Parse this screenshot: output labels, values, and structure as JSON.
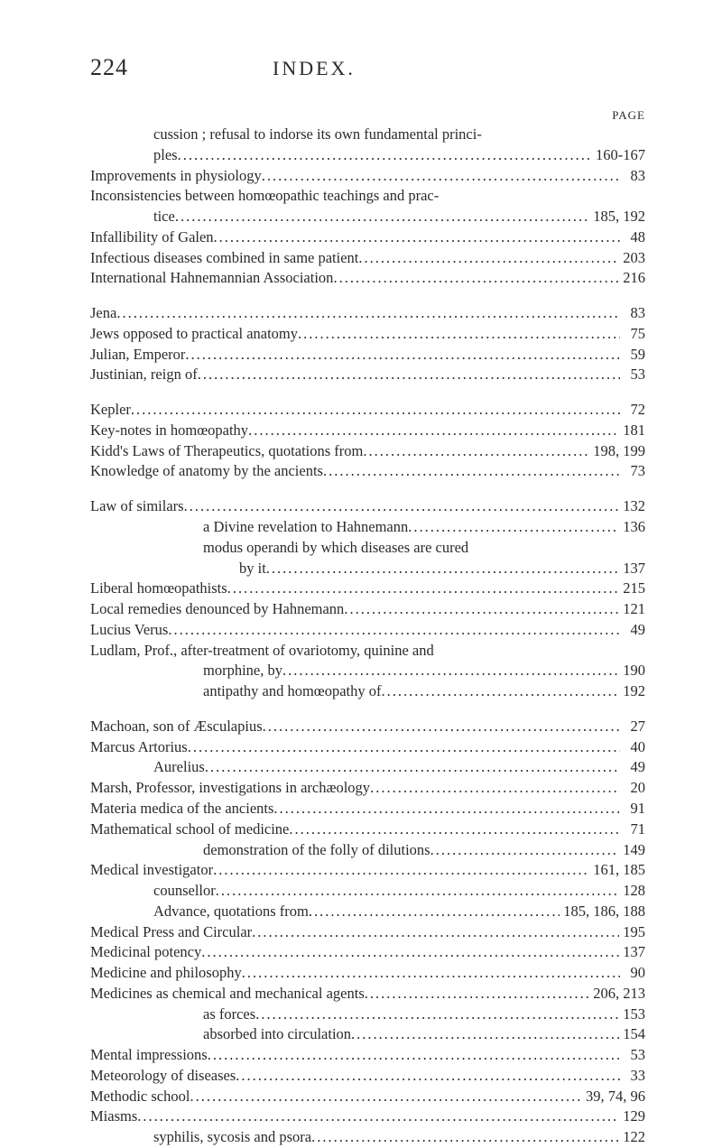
{
  "header": {
    "page_number": "224",
    "title": "INDEX.",
    "page_label": "PAGE"
  },
  "sections": [
    {
      "entries": [
        {
          "text_parts": [
            "cussion ; refusal to indorse its own fundamental princi-"
          ],
          "continuation": "ples",
          "indent": 1,
          "page": "160-167",
          "wrap": true
        },
        {
          "text": "Improvements in physiology",
          "indent": 0,
          "page": "83"
        },
        {
          "text_parts": [
            "Inconsistencies between homœopathic teachings and prac-"
          ],
          "continuation": "tice",
          "indent": 0,
          "page": "185, 192",
          "wrap": true
        },
        {
          "text": "Infallibility of Galen",
          "indent": 0,
          "page": "48"
        },
        {
          "text": "Infectious diseases combined in same patient",
          "indent": 0,
          "page": "203"
        },
        {
          "text": "International Hahnemannian Association",
          "indent": 0,
          "page": "216"
        }
      ]
    },
    {
      "entries": [
        {
          "text": "Jena",
          "indent": 0,
          "page": "83"
        },
        {
          "text": "Jews opposed to practical anatomy",
          "indent": 0,
          "page": "75"
        },
        {
          "text": "Julian, Emperor",
          "indent": 0,
          "page": "59"
        },
        {
          "text": "Justinian, reign of",
          "indent": 0,
          "page": "53"
        }
      ]
    },
    {
      "entries": [
        {
          "text": "Kepler",
          "indent": 0,
          "page": "72"
        },
        {
          "text": "Key-notes in homœopathy",
          "indent": 0,
          "page": "181"
        },
        {
          "text": "Kidd's Laws of Therapeutics, quotations from",
          "indent": 0,
          "page": "198, 199"
        },
        {
          "text": "Knowledge of anatomy by the ancients",
          "indent": 0,
          "page": "73"
        }
      ]
    },
    {
      "entries": [
        {
          "text": "Law of similars",
          "indent": 0,
          "page": "132"
        },
        {
          "text": "a Divine revelation to Hahnemann",
          "indent": 2,
          "page": "136"
        },
        {
          "text_parts": [
            "modus operandi by which diseases are cured"
          ],
          "continuation": "by it",
          "indent": 2,
          "cont_indent": 3,
          "page": "137",
          "wrap": true
        },
        {
          "text": "Liberal homœopathists",
          "indent": 0,
          "page": "215"
        },
        {
          "text": "Local remedies denounced by Hahnemann",
          "indent": 0,
          "page": "121"
        },
        {
          "text": "Lucius Verus",
          "indent": 0,
          "page": "49"
        },
        {
          "text_parts": [
            "Ludlam, Prof., after-treatment of ovariotomy, quinine and"
          ],
          "continuation": "morphine, by",
          "indent": 0,
          "cont_indent": 2,
          "page": "190",
          "wrap": true
        },
        {
          "text": "antipathy and homœopathy of",
          "indent": 2,
          "page": "192"
        }
      ]
    },
    {
      "entries": [
        {
          "text": "Machoan, son of Æsculapius",
          "indent": 0,
          "page": "27"
        },
        {
          "text": "Marcus Artorius",
          "indent": 0,
          "page": "40"
        },
        {
          "text": "Aurelius",
          "indent": 1,
          "page": "49"
        },
        {
          "text": "Marsh, Professor, investigations in archæology",
          "indent": 0,
          "page": "20"
        },
        {
          "text": "Materia medica of the ancients",
          "indent": 0,
          "page": "91"
        },
        {
          "text": "Mathematical school of medicine",
          "indent": 0,
          "page": "71"
        },
        {
          "text": "demonstration of the folly of dilutions",
          "indent": 2,
          "page": "149"
        },
        {
          "text": "Medical investigator",
          "indent": 0,
          "page": "161, 185"
        },
        {
          "text": "counsellor",
          "indent": 1,
          "page": "128"
        },
        {
          "text": "Advance, quotations from",
          "indent": 1,
          "page": "185, 186, 188"
        },
        {
          "text": "Medical Press and Circular",
          "indent": 0,
          "page": "195"
        },
        {
          "text": "Medicinal potency",
          "indent": 0,
          "page": "137"
        },
        {
          "text": "Medicine and philosophy",
          "indent": 0,
          "page": "90"
        },
        {
          "text": "Medicines as chemical and mechanical agents",
          "indent": 0,
          "page": "206, 213"
        },
        {
          "text": "as forces",
          "indent": 2,
          "page": "153"
        },
        {
          "text": "absorbed into circulation",
          "indent": 2,
          "page": "154"
        },
        {
          "text": "Mental impressions",
          "indent": 0,
          "page": "53"
        },
        {
          "text": "Meteorology of diseases",
          "indent": 0,
          "page": "33"
        },
        {
          "text": "Methodic school",
          "indent": 0,
          "page": "39, 74, 96"
        },
        {
          "text": "Miasms",
          "indent": 0,
          "page": "129"
        },
        {
          "text": "syphilis, sycosis and psora",
          "indent": 1,
          "page": "122"
        }
      ]
    }
  ]
}
